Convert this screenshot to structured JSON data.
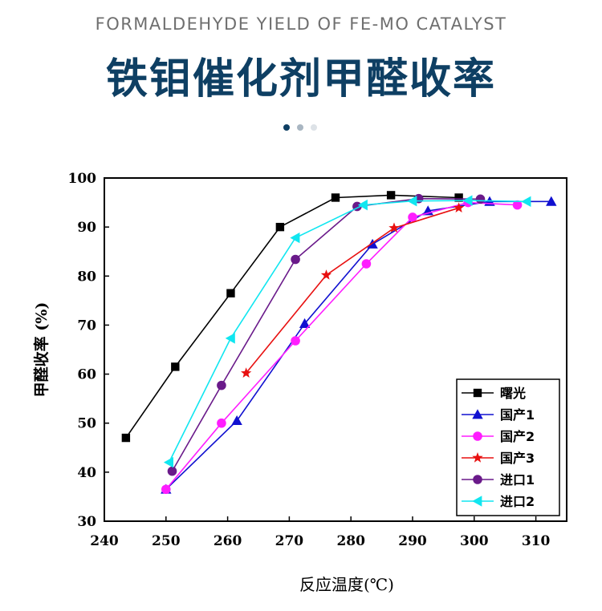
{
  "header": {
    "subtitle": "FORMALDEHYDE YIELD OF FE-MO CATALYST",
    "title": "铁钼催化剂甲醛收率",
    "dot_colors": [
      "#0e3f63",
      "#a9b6c2",
      "#dde2e7"
    ]
  },
  "chart_data": {
    "type": "line",
    "title": "",
    "xlabel": "反应温度(℃)",
    "ylabel": "甲醛收率 (%)",
    "xlim": [
      240,
      315
    ],
    "ylim": [
      30,
      100
    ],
    "xticks": [
      240,
      250,
      260,
      270,
      280,
      290,
      300,
      310
    ],
    "yticks": [
      30,
      40,
      50,
      60,
      70,
      80,
      90,
      100
    ],
    "grid": false,
    "legend_position": "bottom-right",
    "series": [
      {
        "name": "曙光",
        "color": "#000000",
        "marker": "square",
        "x": [
          243.5,
          251.5,
          260.5,
          268.5,
          277.5,
          286.5,
          297.5
        ],
        "y": [
          47,
          61.5,
          76.5,
          90,
          96,
          96.5,
          96
        ]
      },
      {
        "name": "国产1",
        "color": "#1010d0",
        "marker": "triangle-up",
        "x": [
          250,
          261.5,
          272.5,
          283.5,
          292.5,
          302.5,
          312.5
        ],
        "y": [
          36.5,
          50.5,
          70.3,
          86.5,
          93.3,
          95.2,
          95.2
        ]
      },
      {
        "name": "国产2",
        "color": "#ff1dff",
        "marker": "circle",
        "x": [
          250,
          259,
          271,
          282.5,
          290,
          299,
          307
        ],
        "y": [
          36.5,
          50,
          66.8,
          82.5,
          92,
          95,
          94.5
        ]
      },
      {
        "name": "国产3",
        "color": "#e81010",
        "marker": "star",
        "x": [
          263,
          276,
          287,
          297.5
        ],
        "y": [
          60.2,
          80.2,
          89.8,
          93.9
        ]
      },
      {
        "name": "进口1",
        "color": "#6a1a8a",
        "marker": "circle",
        "x": [
          251,
          259,
          271,
          281,
          291,
          301
        ],
        "y": [
          40.2,
          57.7,
          83.4,
          94.2,
          95.8,
          95.7
        ]
      },
      {
        "name": "进口2",
        "color": "#10e6f0",
        "marker": "triangle-left",
        "x": [
          250.5,
          260.5,
          271,
          282,
          290,
          299,
          308.5
        ],
        "y": [
          42,
          67.3,
          87.8,
          94.5,
          95.3,
          95.4,
          95.2
        ]
      }
    ]
  }
}
